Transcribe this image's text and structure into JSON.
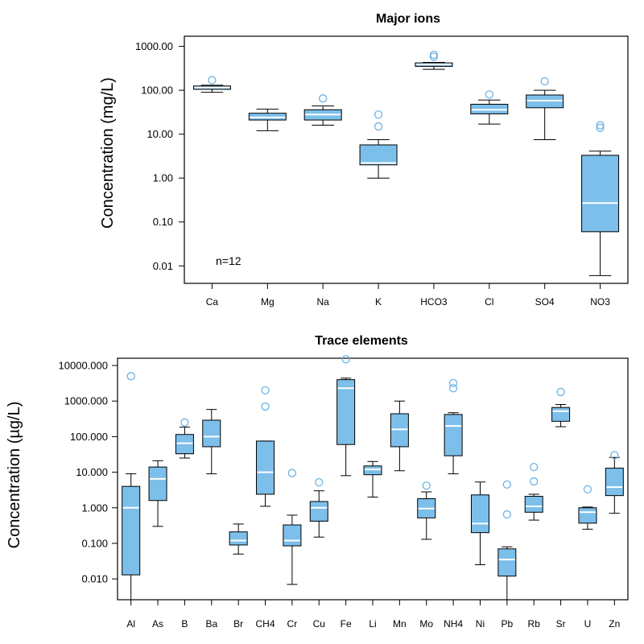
{
  "colors": {
    "box_fill": "#7cbfea",
    "median": "#ffffff",
    "outlier": "#6ab3e6",
    "line": "#000000"
  },
  "chart_data": [
    {
      "type": "boxplot",
      "title": "Major ions",
      "ylabel": "Concentration (mg/L)",
      "yscale": "log",
      "ylim": [
        0.004,
        1700
      ],
      "yticks": [
        0.01,
        0.1,
        1,
        10,
        100,
        1000
      ],
      "ytick_labels": [
        "0.01",
        "0.10",
        "1.00",
        "10.00",
        "100.00",
        "1000.00"
      ],
      "annotation": "n=12",
      "boxes": [
        {
          "label": "Ca",
          "min": 90,
          "q1": 105,
          "median": 115,
          "q3": 125,
          "max": 130,
          "outliers": [
            170
          ]
        },
        {
          "label": "Mg",
          "min": 12,
          "q1": 21,
          "median": 24,
          "q3": 30,
          "max": 37,
          "outliers": []
        },
        {
          "label": "Na",
          "min": 16,
          "q1": 21,
          "median": 28,
          "q3": 36,
          "max": 44,
          "outliers": [
            65
          ]
        },
        {
          "label": "K",
          "min": 1,
          "q1": 2,
          "median": 2.2,
          "q3": 5.7,
          "max": 7.5,
          "outliers": [
            15,
            28
          ]
        },
        {
          "label": "HCO3",
          "min": 300,
          "q1": 350,
          "median": 390,
          "q3": 420,
          "max": 430,
          "outliers": [
            580,
            640
          ]
        },
        {
          "label": "Cl",
          "min": 17,
          "q1": 29,
          "median": 36,
          "q3": 48,
          "max": 60,
          "outliers": [
            80
          ]
        },
        {
          "label": "SO4",
          "min": 7.5,
          "q1": 40,
          "median": 58,
          "q3": 78,
          "max": 100,
          "outliers": [
            160
          ]
        },
        {
          "label": "NO3",
          "min": 0.006,
          "q1": 0.06,
          "median": 0.27,
          "q3": 3.3,
          "max": 4.1,
          "outliers": [
            14,
            16
          ]
        }
      ]
    },
    {
      "type": "boxplot",
      "title": "Trace elements",
      "ylabel": "Concentration (µg/L)",
      "yscale": "log",
      "ylim": [
        0.0026,
        16000
      ],
      "yticks": [
        0.01,
        0.1,
        1,
        10,
        100,
        1000,
        10000
      ],
      "ytick_labels": [
        "0.010",
        "0.100",
        "1.000",
        "10.000",
        "100.000",
        "1000.000",
        "10000.000"
      ],
      "boxes": [
        {
          "label": "Al",
          "min": 0.0026,
          "q1": 0.013,
          "median": 1,
          "q3": 4,
          "max": 9,
          "outliers": [
            5000
          ]
        },
        {
          "label": "As",
          "min": 0.3,
          "q1": 1.6,
          "median": 6.5,
          "q3": 14,
          "max": 21,
          "outliers": []
        },
        {
          "label": "B",
          "min": 25,
          "q1": 33,
          "median": 65,
          "q3": 115,
          "max": 185,
          "outliers": [
            250
          ]
        },
        {
          "label": "Ba",
          "min": 9,
          "q1": 52,
          "median": 100,
          "q3": 290,
          "max": 580,
          "outliers": []
        },
        {
          "label": "Br",
          "min": 0.05,
          "q1": 0.09,
          "median": 0.12,
          "q3": 0.21,
          "max": 0.35,
          "outliers": []
        },
        {
          "label": "CH4",
          "min": 1.1,
          "q1": 2.4,
          "median": 10,
          "q3": 75,
          "max": 75,
          "outliers": [
            700,
            2000
          ]
        },
        {
          "label": "Cr",
          "min": 0.007,
          "q1": 0.085,
          "median": 0.12,
          "q3": 0.33,
          "max": 0.62,
          "outliers": [
            9.5
          ]
        },
        {
          "label": "Cu",
          "min": 0.15,
          "q1": 0.42,
          "median": 1,
          "q3": 1.5,
          "max": 3,
          "outliers": [
            5.2
          ]
        },
        {
          "label": "Fe",
          "min": 8,
          "q1": 60,
          "median": 2300,
          "q3": 4000,
          "max": 4400,
          "outliers": [
            15000
          ]
        },
        {
          "label": "Li",
          "min": 2,
          "q1": 8.5,
          "median": 12,
          "q3": 15,
          "max": 20,
          "outliers": []
        },
        {
          "label": "Mn",
          "min": 11,
          "q1": 52,
          "median": 160,
          "q3": 440,
          "max": 1000,
          "outliers": []
        },
        {
          "label": "Mo",
          "min": 0.13,
          "q1": 0.52,
          "median": 0.95,
          "q3": 1.8,
          "max": 2.8,
          "outliers": [
            4.2
          ]
        },
        {
          "label": "NH4",
          "min": 9,
          "q1": 29,
          "median": 200,
          "q3": 420,
          "max": 470,
          "outliers": [
            2300,
            3200
          ]
        },
        {
          "label": "Ni",
          "min": 0.025,
          "q1": 0.2,
          "median": 0.36,
          "q3": 2.3,
          "max": 5.3,
          "outliers": []
        },
        {
          "label": "Pb",
          "min": 0.0026,
          "q1": 0.012,
          "median": 0.035,
          "q3": 0.07,
          "max": 0.08,
          "outliers": [
            0.65,
            4.5
          ]
        },
        {
          "label": "Rb",
          "min": 0.45,
          "q1": 0.75,
          "median": 1.1,
          "q3": 2.1,
          "max": 2.4,
          "outliers": [
            5.5,
            14
          ]
        },
        {
          "label": "Sr",
          "min": 190,
          "q1": 270,
          "median": 520,
          "q3": 660,
          "max": 800,
          "outliers": [
            1800
          ]
        },
        {
          "label": "U",
          "min": 0.25,
          "q1": 0.37,
          "median": 0.75,
          "q3": 1,
          "max": 1.05,
          "outliers": [
            3.3
          ]
        },
        {
          "label": "Zn",
          "min": 0.7,
          "q1": 2.2,
          "median": 3.8,
          "q3": 13,
          "max": 26,
          "outliers": [
            30
          ]
        }
      ]
    }
  ]
}
